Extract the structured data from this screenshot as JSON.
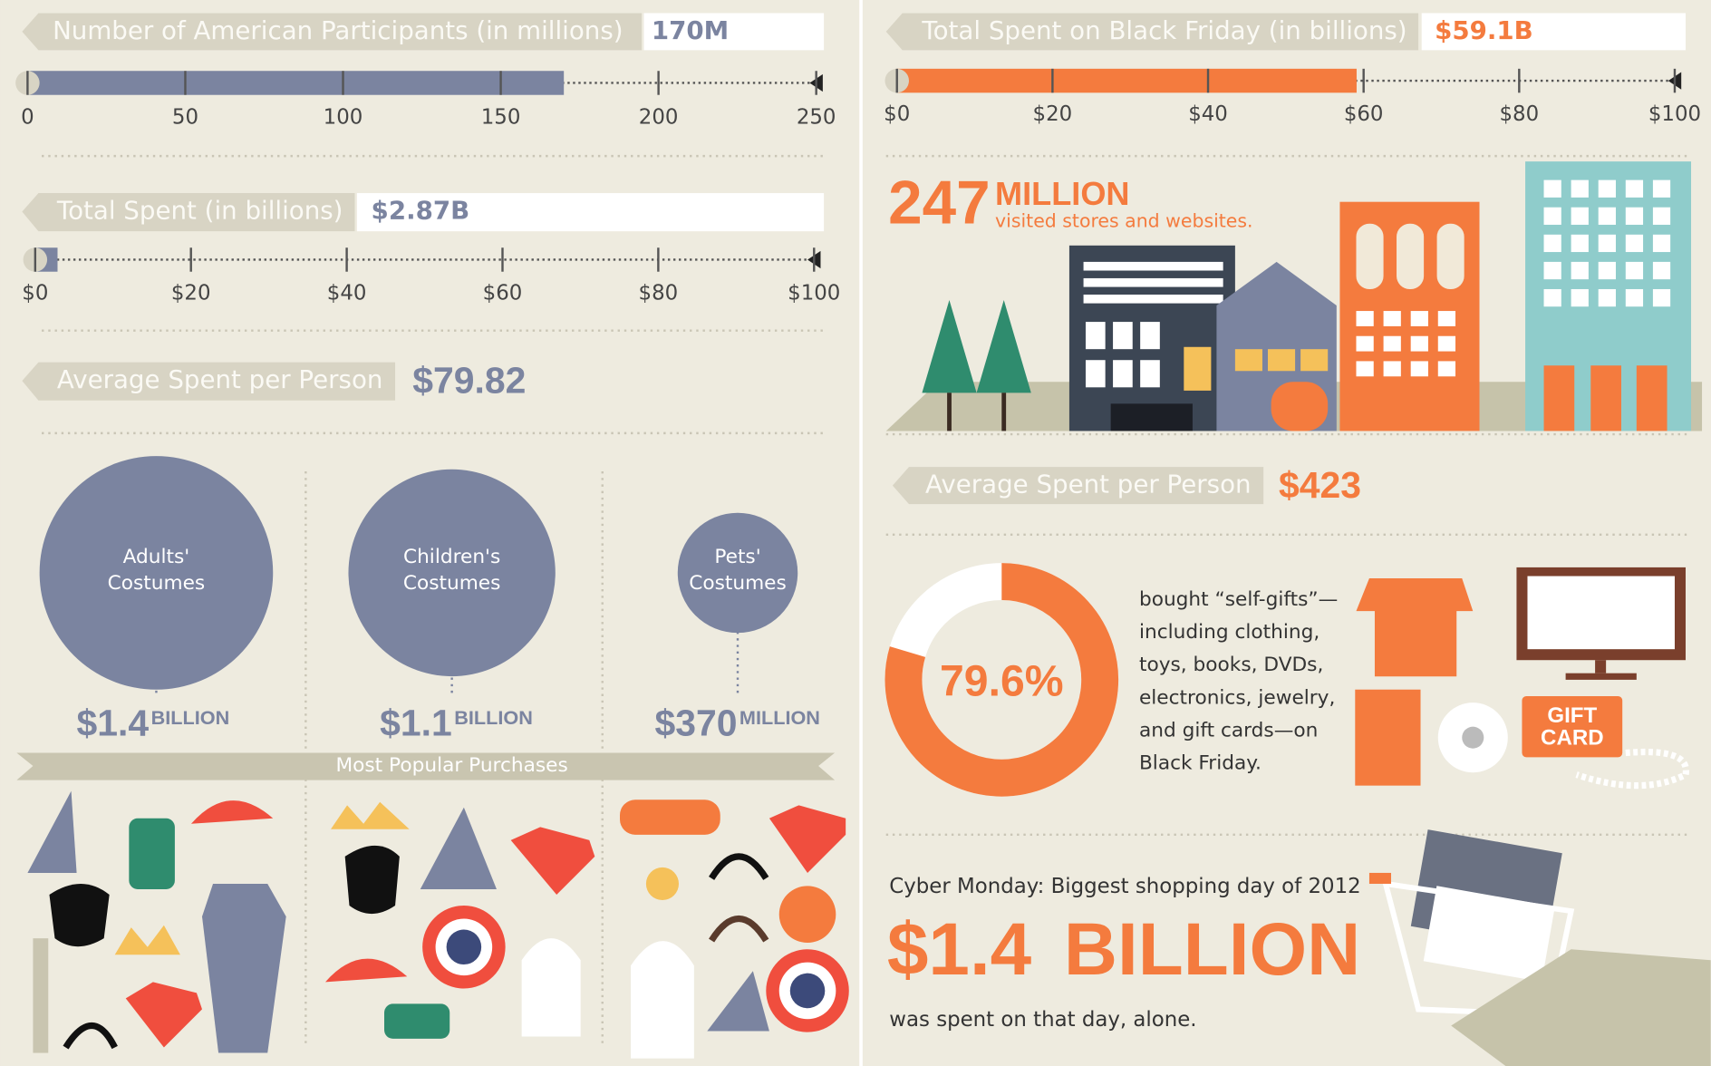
{
  "left": {
    "participants": {
      "label": "Number of American Participants (in millions)",
      "value_label": "170M",
      "value": 170,
      "xlim": [
        0,
        250
      ],
      "xticks": [
        0,
        50,
        100,
        150,
        200,
        250
      ]
    },
    "total_spent": {
      "label": "Total Spent (in billions)",
      "value_label": "$2.87B",
      "value": 2.87,
      "xlim": [
        0,
        100
      ],
      "xticks": [
        {
          "value": 0,
          "label": "$0"
        },
        {
          "value": 20,
          "label": "$20"
        },
        {
          "value": 40,
          "label": "$40"
        },
        {
          "value": 60,
          "label": "$60"
        },
        {
          "value": 80,
          "label": "$80"
        },
        {
          "value": 100,
          "label": "$100"
        }
      ]
    },
    "average": {
      "label": "Average Spent per Person",
      "value": "$79.82"
    },
    "costumes": [
      {
        "label": [
          "Adults'",
          "Costumes"
        ],
        "amount": "$1.4",
        "unit": "BILLION",
        "value": 1400
      },
      {
        "label": [
          "Children's",
          "Costumes"
        ],
        "amount": "$1.1",
        "unit": "BILLION",
        "value": 1100
      },
      {
        "label": [
          "Pets'",
          "Costumes"
        ],
        "amount": "$370",
        "unit": "MILLION",
        "value": 370
      }
    ],
    "banner": "Most Popular Purchases"
  },
  "right": {
    "black_friday": {
      "label": "Total Spent on Black Friday (in billions)",
      "value_label": "$59.1B",
      "value": 59.1,
      "xlim": [
        0,
        100
      ],
      "xticks": [
        {
          "value": 0,
          "label": "$0"
        },
        {
          "value": 20,
          "label": "$20"
        },
        {
          "value": 40,
          "label": "$40"
        },
        {
          "value": 60,
          "label": "$60"
        },
        {
          "value": 80,
          "label": "$80"
        },
        {
          "value": 100,
          "label": "$100"
        }
      ]
    },
    "visitors": {
      "number": "247",
      "unit": "MILLION",
      "text": "visited stores and websites."
    },
    "average": {
      "label": "Average Spent per Person",
      "value": "$423"
    },
    "self_gifts": {
      "value": 79.6,
      "value_label": "79.6%",
      "text": [
        "bought “self-gifts”—",
        "including clothing,",
        "toys, books, DVDs,",
        "electronics, jewelry,",
        "and gift cards—on",
        "Black Friday."
      ],
      "gift_card": [
        "GIFT",
        "CARD"
      ]
    },
    "cyber_monday": {
      "heading": "Cyber Monday: Biggest shopping day of 2012",
      "amount": "$1.4",
      "unit": "BILLION",
      "text": "was spent on that day, alone."
    }
  }
}
